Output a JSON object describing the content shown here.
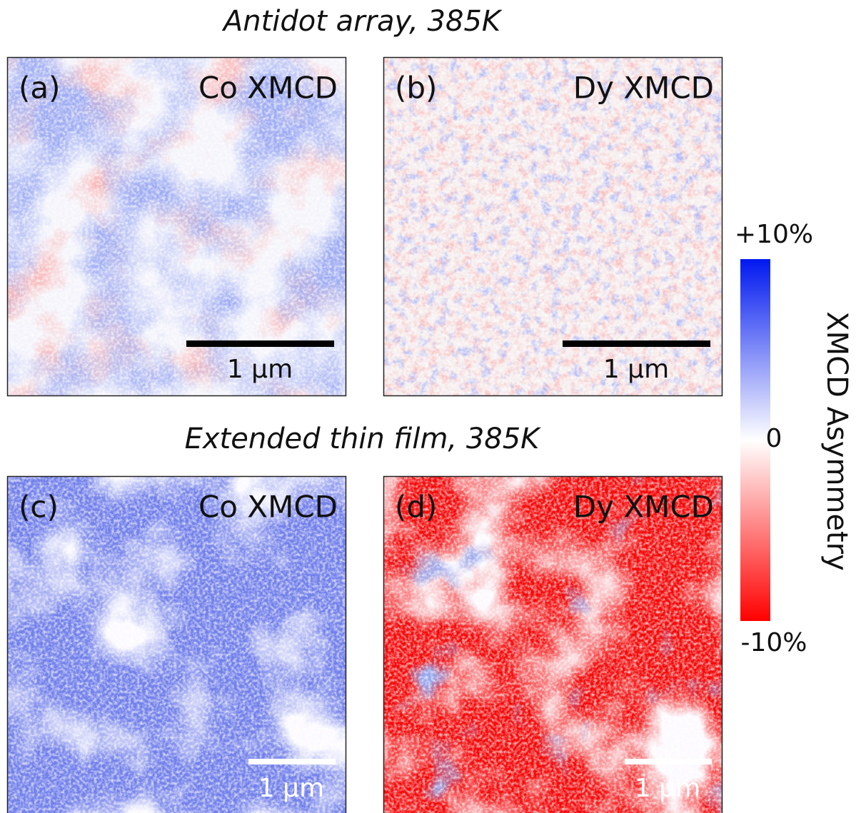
{
  "figure": {
    "rows": [
      {
        "title": "Antidot array, 385K",
        "panels": [
          {
            "label": "(a)",
            "element": "Co XMCD",
            "scale_bar": "1 µm"
          },
          {
            "label": "(b)",
            "element": "Dy XMCD",
            "scale_bar": "1 µm"
          }
        ]
      },
      {
        "title": "Extended thin film, 385K",
        "panels": [
          {
            "label": "(c)",
            "element": "Co XMCD",
            "scale_bar": "1 µm"
          },
          {
            "label": "(d)",
            "element": "Dy XMCD",
            "scale_bar": "1 µm"
          }
        ]
      }
    ],
    "colorbar": {
      "label": "XMCD Asymmetry",
      "ticks": [
        {
          "value": 10,
          "label": "+10%"
        },
        {
          "value": 0,
          "label": "0"
        },
        {
          "value": -10,
          "label": "-10%"
        }
      ]
    }
  }
}
